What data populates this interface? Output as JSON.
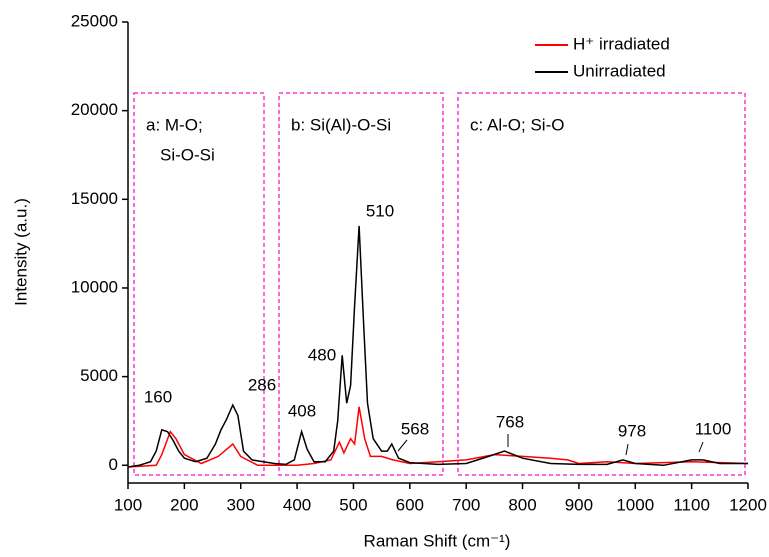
{
  "chart_data": {
    "type": "line",
    "xlabel": "Raman Shift (cm⁻¹)",
    "ylabel": "Intensity (a.u.)",
    "xlim": [
      100,
      1200
    ],
    "xticks": [
      100,
      200,
      300,
      400,
      500,
      600,
      700,
      800,
      900,
      1000,
      1100,
      1200
    ],
    "ylim": [
      -1000,
      25000
    ],
    "yticks": [
      0,
      5000,
      10000,
      15000,
      20000,
      25000
    ],
    "legend": "top-right",
    "series": [
      {
        "name": "H⁺ irradiated",
        "color": "#ff0000",
        "x": [
          100,
          150,
          160,
          175,
          185,
          200,
          230,
          260,
          275,
          286,
          300,
          330,
          400,
          430,
          460,
          475,
          483,
          495,
          502,
          510,
          520,
          530,
          550,
          570,
          600,
          650,
          700,
          750,
          800,
          850,
          880,
          900,
          950,
          1000,
          1100,
          1200
        ],
        "values": [
          -100,
          0,
          600,
          1900,
          1500,
          600,
          100,
          500,
          900,
          1200,
          500,
          0,
          0,
          100,
          300,
          1300,
          700,
          1500,
          1200,
          3300,
          1500,
          500,
          500,
          300,
          100,
          200,
          300,
          600,
          500,
          400,
          300,
          100,
          200,
          100,
          200,
          100
        ]
      },
      {
        "name": "Unirradiated",
        "color": "#000000",
        "x": [
          100,
          120,
          140,
          150,
          160,
          170,
          180,
          190,
          200,
          220,
          240,
          255,
          265,
          275,
          286,
          295,
          305,
          320,
          340,
          360,
          380,
          395,
          408,
          418,
          430,
          450,
          465,
          472,
          480,
          488,
          495,
          502,
          510,
          518,
          525,
          535,
          550,
          560,
          568,
          580,
          600,
          650,
          700,
          740,
          768,
          800,
          850,
          900,
          950,
          978,
          1000,
          1050,
          1100,
          1120,
          1150,
          1200
        ],
        "values": [
          -100,
          0,
          200,
          800,
          2000,
          1900,
          1400,
          800,
          400,
          200,
          400,
          1200,
          2000,
          2600,
          3400,
          2800,
          800,
          300,
          200,
          100,
          50,
          300,
          1900,
          900,
          200,
          200,
          800,
          2500,
          6200,
          3500,
          4500,
          9000,
          13500,
          8000,
          3500,
          1500,
          800,
          800,
          1200,
          400,
          150,
          50,
          100,
          500,
          800,
          400,
          100,
          50,
          50,
          300,
          100,
          0,
          300,
          300,
          100,
          100
        ]
      }
    ],
    "annotations": [
      "160",
      "286",
      "408",
      "480",
      "510",
      "568",
      "768",
      "978",
      "1100"
    ],
    "regions": [
      [
        "a: M-O;",
        "Si-O-Si"
      ],
      [
        "b: Si(Al)-O-Si"
      ],
      [
        "c: Al-O; Si-O"
      ]
    ]
  }
}
